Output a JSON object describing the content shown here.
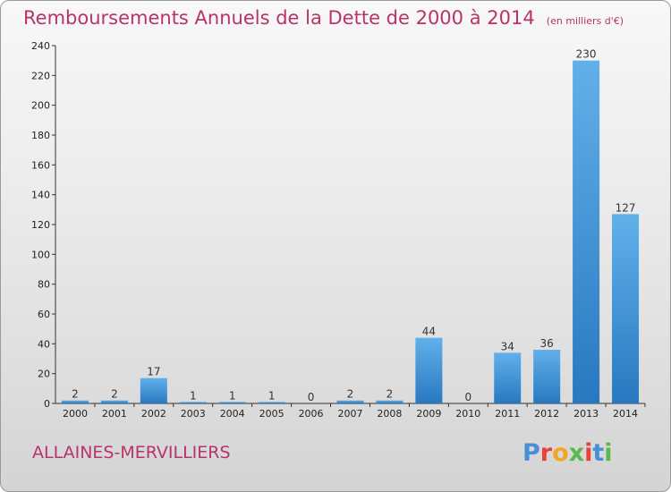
{
  "header": {
    "title": "Remboursements Annuels de la Dette de 2000 à 2014",
    "unit": "(en milliers d'€)"
  },
  "footer": {
    "commune": "ALLAINES-MERVILLIERS",
    "logo_text": "Proxiti",
    "logo_colors": [
      "#4a8fd6",
      "#e8433a",
      "#f2a623",
      "#5bb84a",
      "#e8433a",
      "#4a8fd6",
      "#5bb84a"
    ]
  },
  "colors": {
    "bar_light": "#62b0ea",
    "bar_dark": "#2878c0",
    "title": "#b8336a",
    "axis": "#333333"
  },
  "chart_data": {
    "type": "bar",
    "categories": [
      "2000",
      "2001",
      "2002",
      "2003",
      "2004",
      "2005",
      "2006",
      "2007",
      "2008",
      "2009",
      "2010",
      "2011",
      "2012",
      "2013",
      "2014"
    ],
    "values": [
      2,
      2,
      17,
      1,
      1,
      1,
      0,
      2,
      2,
      44,
      0,
      34,
      36,
      230,
      127
    ],
    "ylim": [
      0,
      240
    ],
    "yticks": [
      0,
      20,
      40,
      60,
      80,
      100,
      120,
      140,
      160,
      180,
      200,
      220,
      240
    ],
    "grid": false,
    "data_labels": true
  }
}
